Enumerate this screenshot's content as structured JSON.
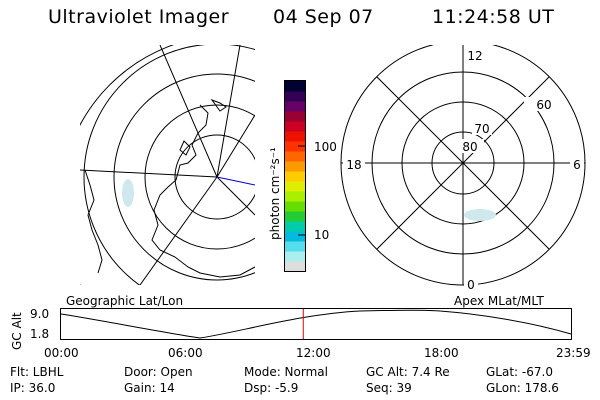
{
  "header": {
    "instrument": "Ultraviolet Imager",
    "date": "04 Sep 07",
    "time": "11:24:58 UT"
  },
  "colorbar": {
    "unit_label": "photon cm⁻²s⁻¹",
    "tick_100": "100",
    "tick_10": "10",
    "colors": [
      "#000033",
      "#330055",
      "#660066",
      "#990033",
      "#cc0022",
      "#ee1100",
      "#ff3300",
      "#ff6600",
      "#ff9900",
      "#ffcc00",
      "#ddee00",
      "#aaee00",
      "#66dd00",
      "#22cc33",
      "#00ccaa",
      "#00bbdd",
      "#55ddee",
      "#aaeeee",
      "#dddddd"
    ]
  },
  "left_map": {
    "caption": "Geographic Lat/Lon"
  },
  "right_map": {
    "caption": "Apex MLat/MLT",
    "lat_labels": [
      "80",
      "70",
      "60"
    ],
    "mlt_labels": {
      "top": "12",
      "left": "18",
      "right": "6",
      "bottom": "0"
    }
  },
  "timeline": {
    "axis_label": "GC Alt",
    "y_ticks": [
      "9.0",
      "1.8"
    ],
    "x_ticks": [
      "00:00",
      "06:00",
      "12:00",
      "18:00",
      "23:59"
    ],
    "current_time_hours": 11.4,
    "marker_color": "#dd0000"
  },
  "info": {
    "flt": "Flt: LBHL",
    "ip": "IP: 36.0",
    "door": "Door: Open",
    "gain": "Gain: 14",
    "mode": "Mode: Normal",
    "dsp": "Dsp:    -5.9",
    "gcalt": "GC Alt: 7.4 Re",
    "seq": "Seq: 39",
    "glat": "GLat: -67.0",
    "glon": "GLon: 178.6"
  }
}
